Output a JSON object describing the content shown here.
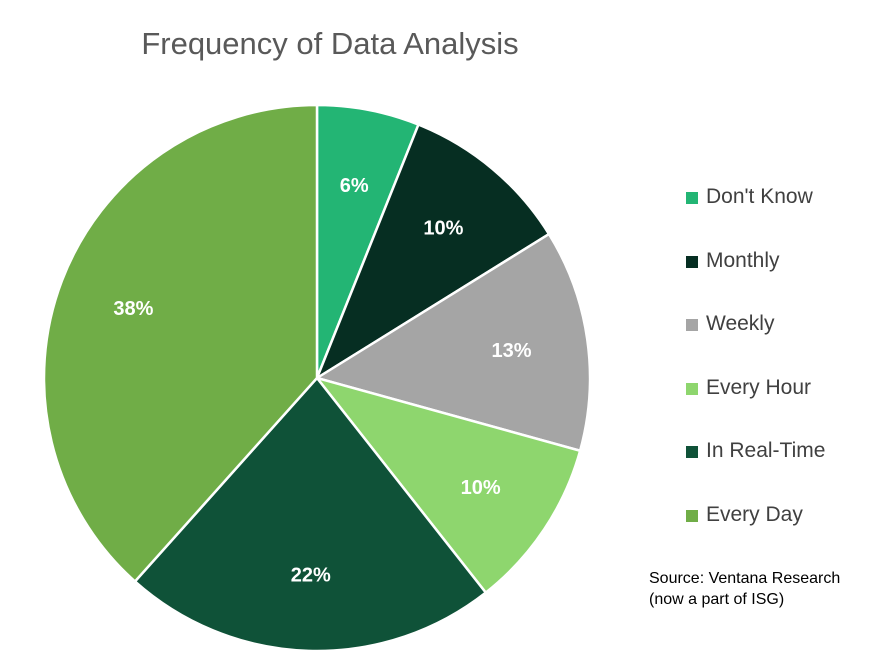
{
  "chart_data": {
    "type": "pie",
    "title": "Frequency of Data Analysis",
    "categories": [
      "Don't Know",
      "Monthly",
      "Weekly",
      "Every Hour",
      "In Real-Time",
      "Every Day"
    ],
    "values": [
      6,
      10,
      13,
      10,
      22,
      38
    ],
    "labels": [
      "6%",
      "10%",
      "13%",
      "10%",
      "22%",
      "38%"
    ],
    "colors": [
      "#23b574",
      "#062e22",
      "#a5a5a5",
      "#8ed66e",
      "#0f5238",
      "#70ad47"
    ],
    "start": "top, clockwise",
    "legend": "right"
  },
  "source": [
    "Source: Ventana Research",
    "(now a part of ISG)"
  ]
}
